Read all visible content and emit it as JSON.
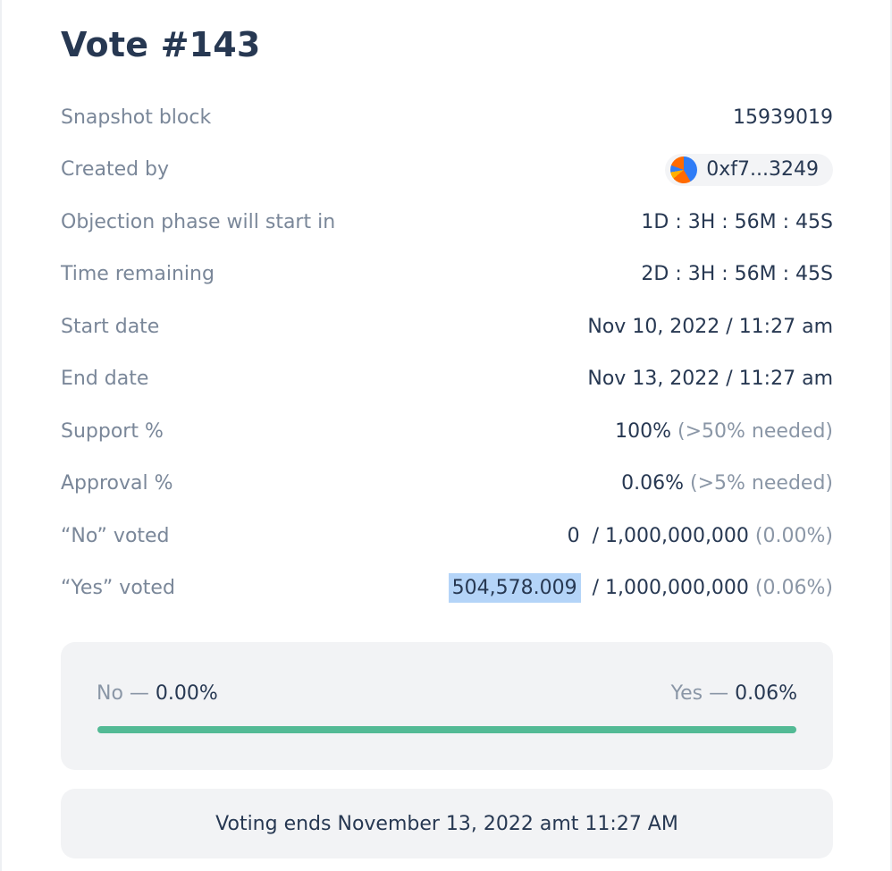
{
  "title": "Vote #143",
  "details": {
    "snapshot_block": {
      "label": "Snapshot block",
      "value": "15939019"
    },
    "created_by": {
      "label": "Created by",
      "value": "0xf7...3249",
      "avatar_icon": "identicon-avatar-icon"
    },
    "objection_phase": {
      "label": "Objection phase will start in",
      "value": "1D : 3H : 56M : 45S"
    },
    "time_remaining": {
      "label": "Time remaining",
      "value": "2D : 3H : 56M : 45S"
    },
    "start_date": {
      "label": "Start date",
      "value": "Nov 10, 2022 / 11:27 am"
    },
    "end_date": {
      "label": "End date",
      "value": "Nov 13, 2022 / 11:27 am"
    },
    "support": {
      "label": "Support %",
      "value": "100%",
      "note": " (>50% needed)"
    },
    "approval": {
      "label": "Approval %",
      "value": "0.06%",
      "note": " (>5% needed)"
    },
    "no_voted": {
      "label": "“No” voted",
      "amount": "0 ",
      "total": " / 1,000,000,000",
      "pct": " (0.00%)"
    },
    "yes_voted": {
      "label": "“Yes” voted",
      "amount": "504,578.009",
      "total": " / 1,000,000,000",
      "pct": " (0.06%)"
    }
  },
  "results": {
    "no_label": "No — ",
    "no_value": "0.00%",
    "yes_label": "Yes — ",
    "yes_value": "0.06%",
    "yes_fraction": 1.0,
    "bar_color": "#53ba95"
  },
  "voting_ends": "Voting ends November 13, 2022 amt 11:27 AM"
}
